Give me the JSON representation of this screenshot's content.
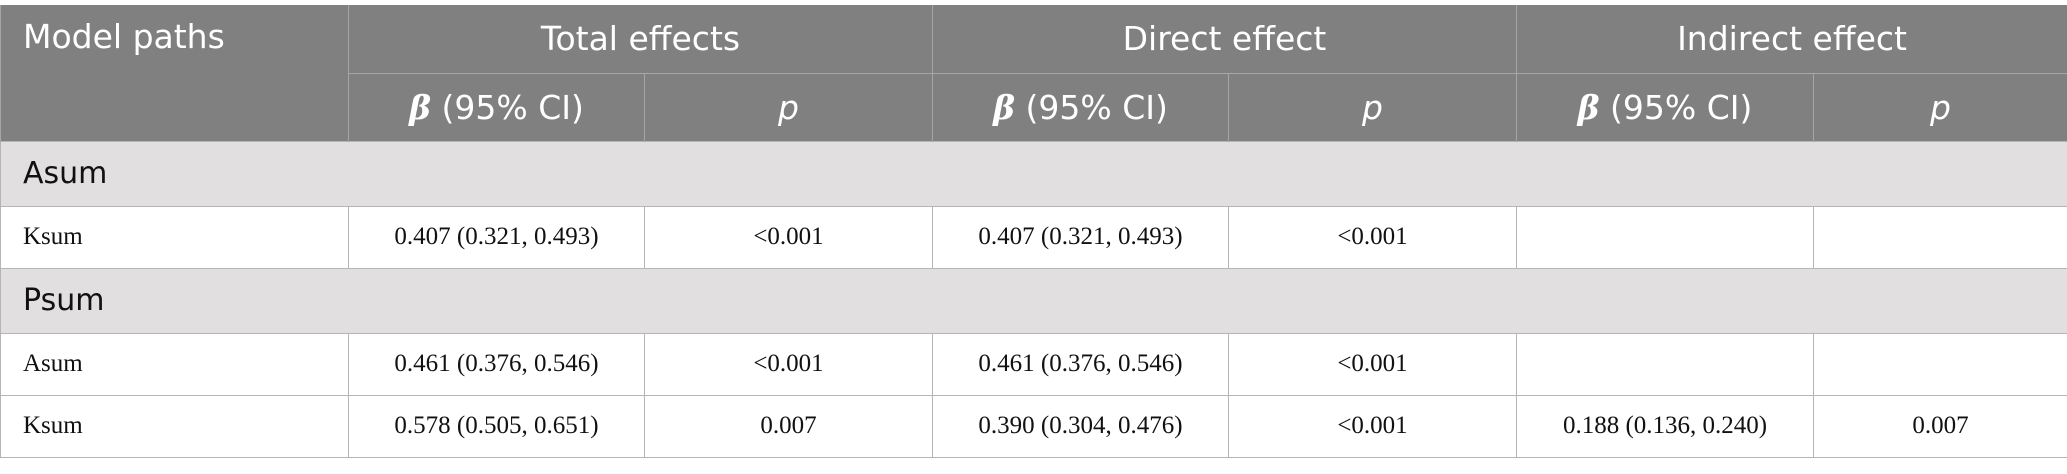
{
  "header": {
    "model_paths": "Model paths",
    "groups": [
      "Total effects",
      "Direct effect",
      "Indirect effect"
    ],
    "beta_symbol": "β",
    "beta_suffix": " (95% CI)",
    "p_label": "p"
  },
  "sections": [
    {
      "label": "Asum",
      "rows": [
        {
          "path": "Ksum",
          "total_beta": "0.407 (0.321, 0.493)",
          "total_p": "<0.001",
          "direct_beta": "0.407 (0.321, 0.493)",
          "direct_p": "<0.001",
          "indirect_beta": "",
          "indirect_p": ""
        }
      ]
    },
    {
      "label": "Psum",
      "rows": [
        {
          "path": "Asum",
          "total_beta": "0.461 (0.376, 0.546)",
          "total_p": "<0.001",
          "direct_beta": "0.461 (0.376, 0.546)",
          "direct_p": "<0.001",
          "indirect_beta": "",
          "indirect_p": ""
        },
        {
          "path": "Ksum",
          "total_beta": "0.578 (0.505, 0.651)",
          "total_p": "0.007",
          "direct_beta": "0.390 (0.304, 0.476)",
          "direct_p": "<0.001",
          "indirect_beta": "0.188 (0.136, 0.240)",
          "indirect_p": "0.007"
        }
      ]
    }
  ],
  "colors": {
    "header_bg": "#808080",
    "section_bg": "#e1dfe0",
    "border": "#b5b5b5"
  }
}
